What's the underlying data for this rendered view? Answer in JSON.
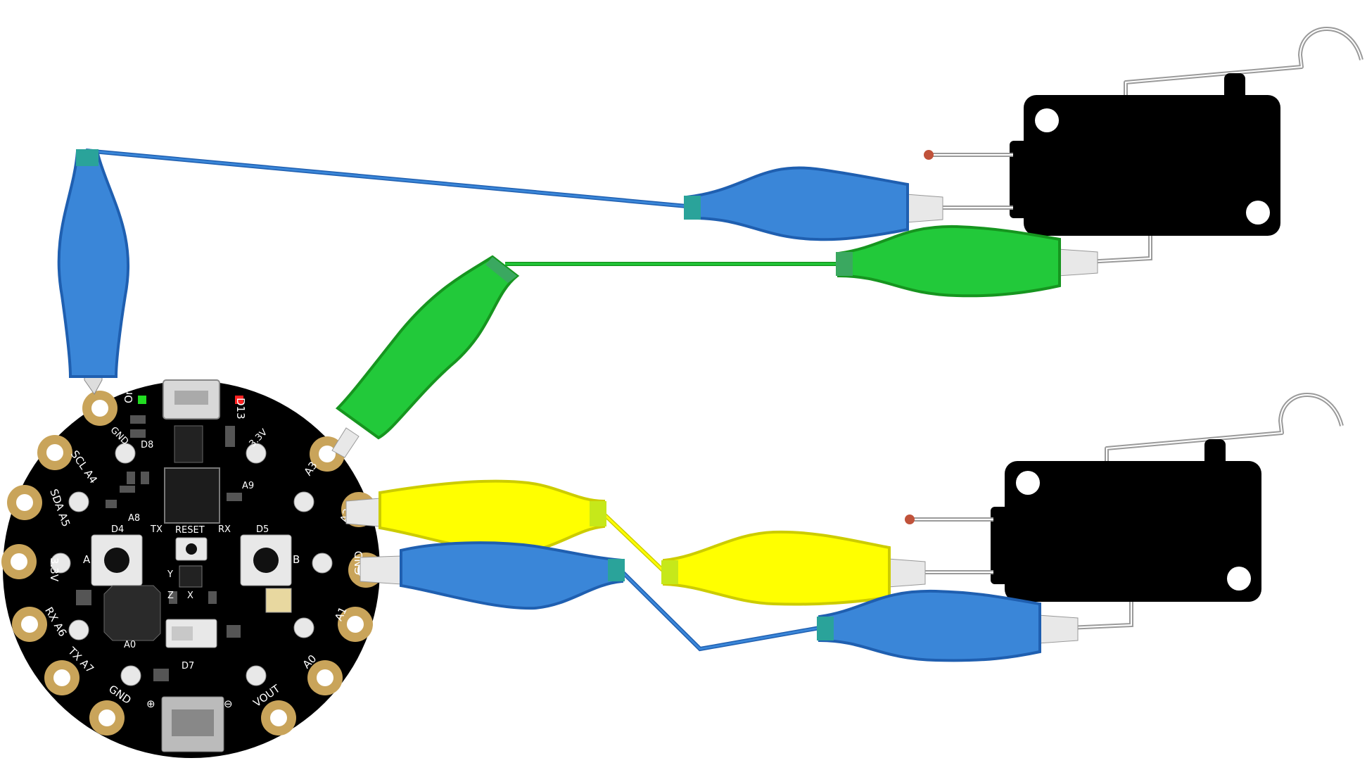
{
  "board": {
    "name": "circuit-playground-board",
    "top_labels": {
      "on": "On",
      "d13": "D13",
      "d8": "D8",
      "gnd": "GND",
      "v33_top": "3.3V"
    },
    "mid_labels": {
      "a9": "A9",
      "a8": "A8",
      "d4": "D4",
      "d5": "D5",
      "tx_small": "TX",
      "rx_small": "RX",
      "reset": "RESET",
      "a0_small": "A0",
      "d7": "D7",
      "y_axis": "Y",
      "x_axis": "X",
      "z_axis": "Z"
    },
    "pads": [
      {
        "id": "pad-3.3v-left",
        "label": "3.3V"
      },
      {
        "id": "pad-scl-a4",
        "label": "SCL A4"
      },
      {
        "id": "pad-sda-a5",
        "label": "SDA A5"
      },
      {
        "id": "pad-3.3v",
        "label": "3.3V"
      },
      {
        "id": "pad-rx-a6",
        "label": "RX A6"
      },
      {
        "id": "pad-tx-a7",
        "label": "TX A7"
      },
      {
        "id": "pad-gnd-bottom",
        "label": "GND"
      },
      {
        "id": "pad-vout",
        "label": "VOUT"
      },
      {
        "id": "pad-a0",
        "label": "A0"
      },
      {
        "id": "pad-a1",
        "label": "A1"
      },
      {
        "id": "pad-gnd-right",
        "label": "GND"
      },
      {
        "id": "pad-a2",
        "label": "A2"
      },
      {
        "id": "pad-a3",
        "label": "A3"
      }
    ],
    "button_labels": {
      "a": "A",
      "b": "B"
    },
    "power_symbols": {
      "plus": "⊕",
      "minus": "⊖"
    }
  },
  "colors": {
    "board": "#000000",
    "pad": "#c9a45a",
    "wire_blue": "#3a86d8",
    "wire_green": "#22c93a",
    "wire_yellow": "#ffff00",
    "switch_body": "#000000",
    "switch_lever": "#9a9a9a",
    "contact_dot": "#c0523a",
    "led_green": "#22dd22",
    "led_red": "#ff2222"
  },
  "components": {
    "switch_top": "microswitch-top",
    "switch_bottom": "microswitch-bottom"
  },
  "connections": [
    {
      "from": "pad-3.3v-left",
      "to": "switch-top-common",
      "color": "blue"
    },
    {
      "from": "pad-a3",
      "to": "switch-top-no",
      "color": "green"
    },
    {
      "from": "pad-a2",
      "to": "switch-bottom-common",
      "color": "yellow"
    },
    {
      "from": "pad-gnd-right",
      "to": "switch-bottom-no",
      "color": "blue"
    }
  ]
}
